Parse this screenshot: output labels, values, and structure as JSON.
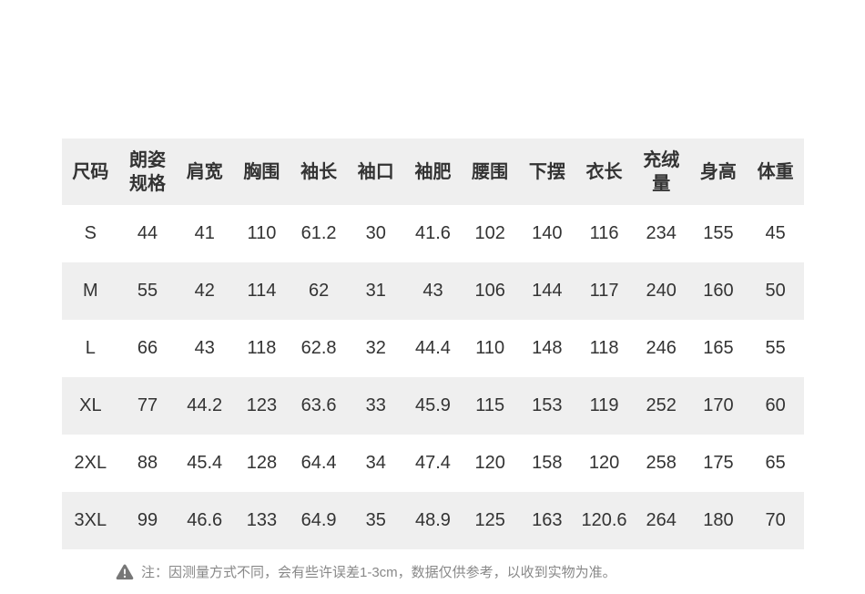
{
  "table": {
    "headers": [
      "尺码",
      "朗姿\n规格",
      "肩宽",
      "胸围",
      "袖长",
      "袖口",
      "袖肥",
      "腰围",
      "下摆",
      "衣长",
      "充绒\n量",
      "身高",
      "体重"
    ],
    "rows": [
      [
        "S",
        "44",
        "41",
        "110",
        "61.2",
        "30",
        "41.6",
        "102",
        "140",
        "116",
        "234",
        "155",
        "45"
      ],
      [
        "M",
        "55",
        "42",
        "114",
        "62",
        "31",
        "43",
        "106",
        "144",
        "117",
        "240",
        "160",
        "50"
      ],
      [
        "L",
        "66",
        "43",
        "118",
        "62.8",
        "32",
        "44.4",
        "110",
        "148",
        "118",
        "246",
        "165",
        "55"
      ],
      [
        "XL",
        "77",
        "44.2",
        "123",
        "63.6",
        "33",
        "45.9",
        "115",
        "153",
        "119",
        "252",
        "170",
        "60"
      ],
      [
        "2XL",
        "88",
        "45.4",
        "128",
        "64.4",
        "34",
        "47.4",
        "120",
        "158",
        "120",
        "258",
        "175",
        "65"
      ],
      [
        "3XL",
        "99",
        "46.6",
        "133",
        "64.9",
        "35",
        "48.9",
        "125",
        "163",
        "120.6",
        "264",
        "180",
        "70"
      ]
    ]
  },
  "note": {
    "icon": "warning-triangle-icon",
    "text": "注：因测量方式不同，会有些许误差1-3cm，数据仅供参考，以收到实物为准。"
  },
  "colors": {
    "row_alt_background": "#efefef",
    "table_text": "#333333",
    "note_text": "#888888",
    "warning_icon": "#777777"
  }
}
